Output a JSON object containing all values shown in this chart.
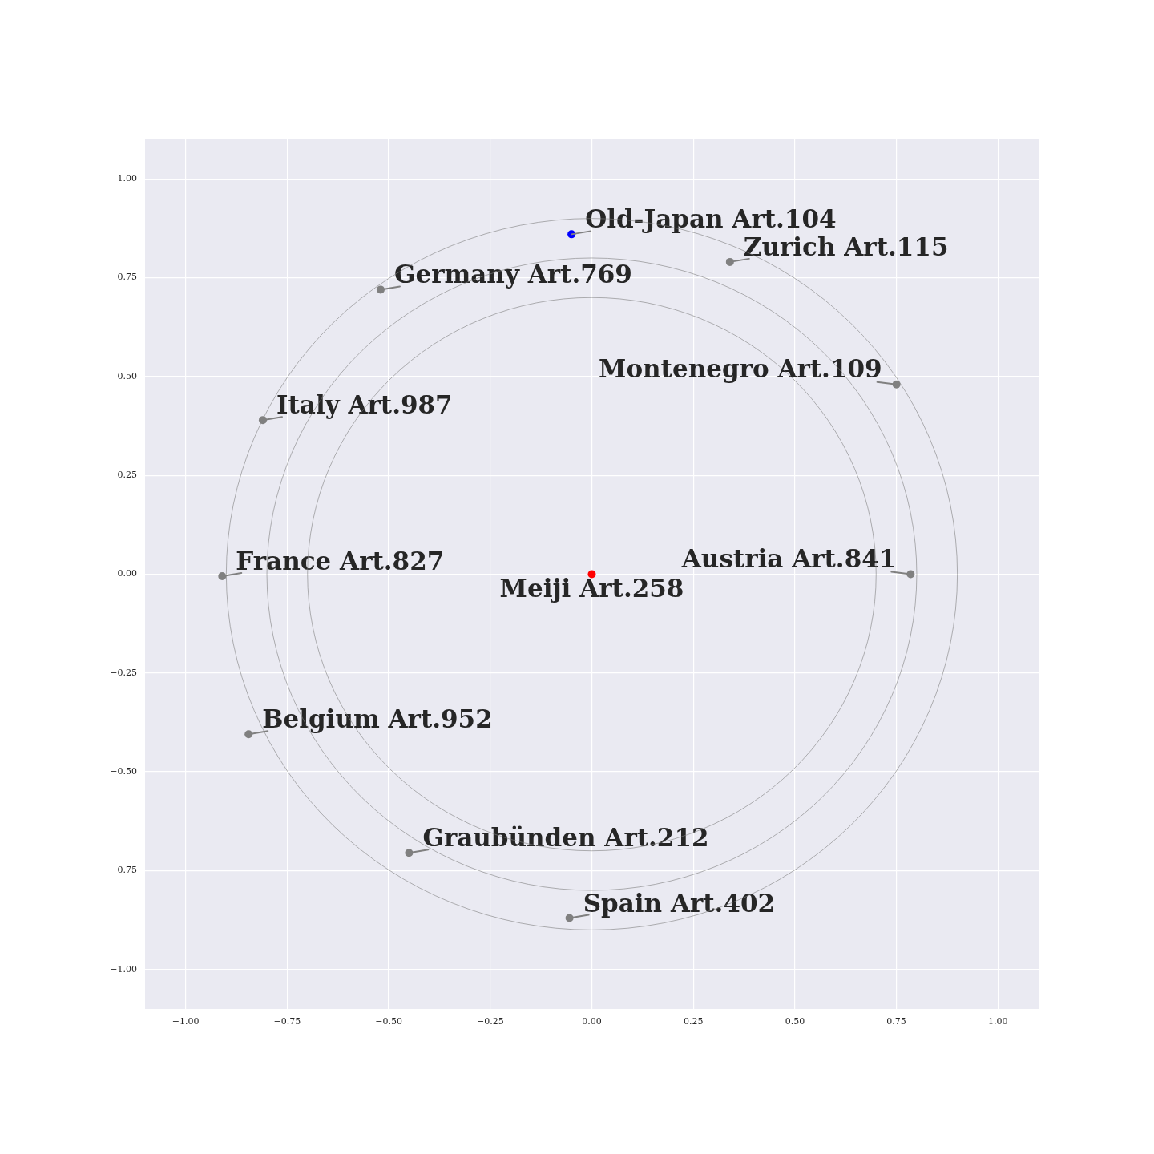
{
  "chart_data": {
    "type": "scatter",
    "xlim": [
      -1.1,
      1.1
    ],
    "ylim": [
      -1.1,
      1.1
    ],
    "xticks": [
      {
        "value": -1,
        "label": "−1.00"
      },
      {
        "value": -0.75,
        "label": "−0.75"
      },
      {
        "value": -0.5,
        "label": "−0.50"
      },
      {
        "value": -0.25,
        "label": "−0.25"
      },
      {
        "value": 0,
        "label": "0.00"
      },
      {
        "value": 0.25,
        "label": "0.25"
      },
      {
        "value": 0.5,
        "label": "0.50"
      },
      {
        "value": 0.75,
        "label": "0.75"
      },
      {
        "value": 1,
        "label": "1.00"
      }
    ],
    "yticks": [
      {
        "value": -1,
        "label": "−1.00"
      },
      {
        "value": -0.75,
        "label": "−0.75"
      },
      {
        "value": -0.5,
        "label": "−0.50"
      },
      {
        "value": -0.25,
        "label": "−0.25"
      },
      {
        "value": 0,
        "label": "0.00"
      },
      {
        "value": 0.25,
        "label": "0.25"
      },
      {
        "value": 0.5,
        "label": "0.50"
      },
      {
        "value": 0.75,
        "label": "0.75"
      },
      {
        "value": 1,
        "label": "1.00"
      }
    ],
    "grid": true,
    "marker": "circle",
    "series": [
      {
        "color": "#808080",
        "x": [
          0.34,
          -0.52,
          0.75,
          -0.81,
          -0.91,
          0.785,
          -0.845,
          -0.45,
          -0.055
        ],
        "values": [
          0.79,
          0.72,
          0.48,
          0.39,
          -0.005,
          0,
          -0.405,
          -0.705,
          -0.87
        ]
      },
      {
        "color": "#0000ff",
        "x": [
          -0.05
        ],
        "values": [
          0.86
        ]
      },
      {
        "color": "#ff0000",
        "x": [
          0
        ],
        "values": [
          0
        ]
      }
    ],
    "annotations": [
      {
        "text": "Old-Japan Art.104",
        "x": -0.05,
        "y": 0.86
      },
      {
        "text": "Zurich Art.115",
        "x": 0.34,
        "y": 0.79
      },
      {
        "text": "Germany Art.769",
        "x": -0.52,
        "y": 0.72
      },
      {
        "text": "Montenegro Art.109",
        "x": 0.75,
        "y": 0.48
      },
      {
        "text": "Italy Art.987",
        "x": -0.81,
        "y": 0.39
      },
      {
        "text": "France Art.827",
        "x": -0.91,
        "y": -0.005
      },
      {
        "text": "Austria Art.841",
        "x": 0.785,
        "y": 0
      },
      {
        "text": "Meiji Art.258",
        "x": 0,
        "y": 0
      },
      {
        "text": "Belgium Art.952",
        "x": -0.845,
        "y": -0.405
      },
      {
        "text": "Graubünden Art.212",
        "x": -0.45,
        "y": -0.705
      },
      {
        "text": "Spain Art.402",
        "x": -0.055,
        "y": -0.87
      }
    ]
  }
}
